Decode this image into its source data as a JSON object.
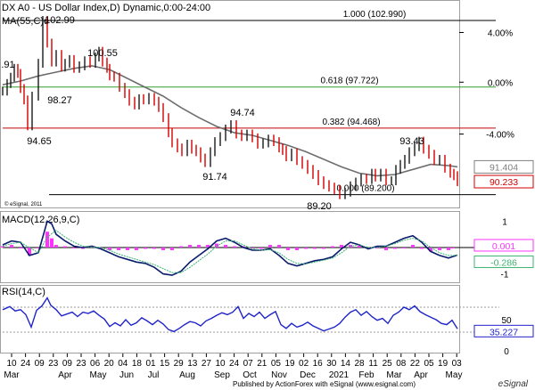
{
  "window": {
    "title": "DX A0 - US Dollar Index,D) Dynamic,0:00-24:00",
    "ma_label": "MA(55,C)e",
    "watermark": "© eSignal, 2011",
    "footer": "Published by ActionForex with eSignal (www.esignal.com)",
    "footer_logo": "eSignal"
  },
  "chart_data": [
    {
      "type": "bar",
      "subtype": "ohlc",
      "title": "DX A0 - US Dollar Index,D) Dynamic,0:00-24:00",
      "ylim": [
        88.4,
        104.4
      ],
      "grid": false,
      "y_ticks": [
        {
          "label": "4.00%"
        },
        {
          "label": "0.00%"
        },
        {
          "label": "-4.00%"
        }
      ],
      "fib_levels": [
        {
          "label": "1.000 (102.990)",
          "value": 102.99,
          "color": "#000000"
        },
        {
          "label": "0.618 (97.722)",
          "value": 97.722,
          "color": "#2ca02c"
        },
        {
          "label": "0.382 (94.468)",
          "value": 94.468,
          "color": "#c00000"
        },
        {
          "label": "0.000 (89.200)",
          "value": 89.2,
          "color": "#000000"
        }
      ],
      "price_tags": [
        {
          "label": "91.404",
          "value": 91.404,
          "color": "#7f7f7f"
        },
        {
          "label": "90.233",
          "value": 90.233,
          "color": "#d20000"
        }
      ],
      "annotations": [
        "102.99",
        "100.55",
        "98.27",
        "94.65",
        "94.74",
        "91.74",
        "93.43",
        "89.20",
        ".91"
      ],
      "series": [
        {
          "name": "DX A0",
          "kind": "price",
          "x": [
            0,
            5,
            9,
            13,
            17,
            20,
            24,
            28,
            33,
            40,
            45,
            50,
            55,
            60,
            66,
            70,
            75,
            80,
            86,
            92,
            98,
            104,
            108,
            112,
            117,
            120,
            125,
            131,
            137,
            142,
            148,
            153,
            158,
            164,
            170,
            175,
            180,
            186,
            190,
            196,
            201,
            207,
            212,
            217,
            222,
            227,
            233,
            238,
            244,
            250,
            256,
            262,
            268,
            274,
            280,
            286,
            292,
            298,
            304,
            310,
            314,
            318,
            324,
            330,
            336,
            342,
            348,
            354,
            360,
            366,
            372,
            378,
            384,
            390,
            396,
            402,
            408,
            414,
            418,
            424,
            430,
            436,
            441,
            446,
            451,
            456,
            462,
            467,
            472,
            478,
            484,
            490,
            496,
            502,
            506,
            510
          ],
          "y": [
            97.4,
            98.0,
            98.5,
            99.2,
            98.8,
            97.6,
            96.7,
            94.65,
            97.0,
            99.6,
            102.99,
            101.2,
            99.7,
            100.3,
            99.3,
            99.6,
            99.9,
            99.2,
            99.4,
            99.8,
            99.6,
            100.1,
            100.55,
            99.7,
            99.2,
            98.6,
            98.5,
            97.7,
            97.2,
            96.6,
            96.3,
            96.8,
            96.7,
            96.9,
            96.6,
            96.1,
            95.3,
            94.1,
            93.3,
            92.9,
            92.6,
            93.2,
            92.8,
            92.6,
            92.1,
            91.74,
            92.6,
            93.4,
            93.8,
            94.4,
            94.74,
            94.0,
            93.8,
            94.0,
            93.7,
            93.2,
            93.3,
            93.6,
            93.4,
            92.9,
            92.7,
            92.2,
            92.5,
            91.9,
            91.6,
            91.2,
            90.8,
            90.3,
            90.0,
            89.8,
            89.6,
            89.2,
            89.4,
            89.9,
            90.2,
            90.5,
            90.4,
            90.9,
            90.6,
            90.9,
            90.3,
            90.3,
            91.2,
            91.6,
            92.0,
            92.6,
            93.0,
            93.43,
            92.8,
            92.4,
            91.9,
            92.0,
            91.3,
            90.9,
            90.7,
            90.233
          ]
        },
        {
          "name": "MA(55,C)e",
          "kind": "ma",
          "x": [
            0,
            20,
            40,
            60,
            80,
            100,
            120,
            140,
            160,
            180,
            200,
            220,
            240,
            260,
            280,
            300,
            320,
            340,
            360,
            380,
            400,
            420,
            440,
            460,
            480,
            500,
            510
          ],
          "y": [
            97.9,
            98.2,
            98.6,
            98.9,
            99.2,
            99.4,
            99.1,
            98.4,
            97.7,
            97.0,
            96.1,
            95.3,
            94.6,
            94.1,
            93.9,
            93.5,
            93.1,
            92.6,
            92.0,
            91.4,
            90.9,
            90.7,
            90.8,
            91.2,
            91.6,
            91.5,
            91.404
          ]
        }
      ]
    },
    {
      "type": "line",
      "title": "MACD(12,26,9,C)",
      "ylim": [
        -1.25,
        1.25
      ],
      "y_ticks": [
        {
          "label": "1",
          "value": 1
        },
        {
          "label": "-1",
          "value": -1
        }
      ],
      "value_tags": [
        {
          "label": "0.001",
          "value": 0.001,
          "color": "#ff33ff"
        },
        {
          "label": "-0.286",
          "value": -0.286,
          "color": "#3cb371"
        }
      ],
      "series": [
        {
          "name": "MACD",
          "x": [
            0,
            10,
            20,
            30,
            40,
            50,
            55,
            60,
            70,
            80,
            90,
            100,
            110,
            120,
            130,
            140,
            150,
            160,
            170,
            180,
            190,
            200,
            210,
            220,
            230,
            240,
            250,
            260,
            270,
            280,
            290,
            300,
            310,
            320,
            330,
            340,
            350,
            360,
            370,
            380,
            390,
            400,
            410,
            420,
            430,
            440,
            450,
            460,
            470,
            480,
            490,
            500,
            510
          ],
          "y": [
            0.1,
            0.25,
            0.2,
            -0.3,
            -0.2,
            1.0,
            0.9,
            0.5,
            0.25,
            0.05,
            0.0,
            0.05,
            -0.05,
            -0.2,
            -0.35,
            -0.45,
            -0.55,
            -0.6,
            -0.75,
            -1.0,
            -1.05,
            -0.9,
            -0.55,
            -0.3,
            -0.05,
            0.25,
            0.35,
            0.2,
            0.0,
            -0.1,
            -0.1,
            -0.05,
            -0.3,
            -0.6,
            -0.7,
            -0.6,
            -0.5,
            -0.45,
            -0.35,
            -0.05,
            0.2,
            0.1,
            -0.05,
            0.05,
            0.05,
            0.2,
            0.35,
            0.45,
            0.2,
            -0.15,
            -0.3,
            -0.4,
            -0.286
          ]
        },
        {
          "name": "Signal",
          "x": [
            0,
            10,
            20,
            30,
            40,
            50,
            60,
            70,
            80,
            90,
            100,
            110,
            120,
            130,
            140,
            150,
            160,
            170,
            180,
            190,
            200,
            210,
            220,
            230,
            240,
            250,
            260,
            270,
            280,
            290,
            300,
            310,
            320,
            330,
            340,
            350,
            360,
            370,
            380,
            390,
            400,
            410,
            420,
            430,
            440,
            450,
            460,
            470,
            480,
            490,
            500,
            510
          ],
          "y": [
            0.05,
            0.15,
            0.2,
            0.0,
            -0.2,
            0.4,
            0.65,
            0.4,
            0.2,
            0.05,
            0.02,
            0.0,
            -0.1,
            -0.25,
            -0.35,
            -0.45,
            -0.55,
            -0.65,
            -0.8,
            -0.95,
            -0.95,
            -0.75,
            -0.5,
            -0.25,
            0.05,
            0.25,
            0.25,
            0.1,
            -0.05,
            -0.1,
            -0.08,
            -0.2,
            -0.45,
            -0.6,
            -0.62,
            -0.55,
            -0.48,
            -0.4,
            -0.2,
            0.05,
            0.1,
            0.0,
            0.0,
            0.05,
            0.15,
            0.28,
            0.35,
            0.25,
            0.0,
            -0.2,
            -0.3,
            -0.3
          ]
        },
        {
          "name": "Histogram",
          "kind": "bars",
          "color": "#ff33ff",
          "x": [
            0,
            10,
            20,
            30,
            40,
            50,
            55,
            60,
            70,
            80,
            90,
            100,
            110,
            120,
            130,
            140,
            150,
            160,
            170,
            180,
            190,
            200,
            210,
            220,
            230,
            240,
            250,
            260,
            270,
            280,
            290,
            300,
            310,
            320,
            330,
            340,
            350,
            360,
            370,
            380,
            390,
            400,
            410,
            420,
            430,
            440,
            450,
            460,
            470,
            480,
            490,
            500,
            505
          ],
          "y": [
            0.05,
            0.1,
            0.0,
            -0.3,
            0.0,
            0.6,
            0.35,
            0.1,
            0.05,
            0.0,
            -0.05,
            0.05,
            -0.05,
            -0.1,
            -0.1,
            -0.1,
            -0.1,
            -0.05,
            -0.05,
            -0.1,
            -0.1,
            0.05,
            0.1,
            0.1,
            0.1,
            0.15,
            0.1,
            0.05,
            0.05,
            0.0,
            -0.05,
            0.1,
            0.1,
            -0.1,
            -0.1,
            -0.05,
            -0.05,
            -0.05,
            0.05,
            0.1,
            0.1,
            0.1,
            -0.05,
            0.0,
            -0.1,
            -0.05,
            0.0,
            0.1,
            -0.05,
            -0.15,
            -0.1,
            -0.1,
            0.001
          ]
        }
      ]
    },
    {
      "type": "line",
      "title": "RSI(14,C)",
      "ylim": [
        0,
        100
      ],
      "y_ticks": [
        {
          "label": "50",
          "value": 50
        },
        {
          "label": "0",
          "value": 0
        }
      ],
      "value_tags": [
        {
          "label": "35.227",
          "value": 35.227,
          "color": "#2222cc"
        }
      ],
      "series": [
        {
          "name": "RSI",
          "x": [
            0,
            8,
            14,
            20,
            26,
            32,
            38,
            44,
            50,
            54,
            60,
            66,
            72,
            78,
            84,
            90,
            96,
            102,
            108,
            114,
            120,
            126,
            132,
            138,
            144,
            150,
            156,
            162,
            168,
            174,
            180,
            186,
            192,
            198,
            204,
            210,
            216,
            222,
            228,
            234,
            240,
            246,
            252,
            258,
            264,
            270,
            276,
            282,
            288,
            294,
            300,
            306,
            312,
            318,
            324,
            330,
            336,
            342,
            348,
            354,
            360,
            366,
            372,
            378,
            384,
            390,
            396,
            402,
            408,
            414,
            420,
            426,
            432,
            438,
            444,
            450,
            456,
            462,
            468,
            474,
            480,
            486,
            492,
            498,
            504,
            508,
            510
          ],
          "y": [
            66,
            71,
            64,
            66,
            58,
            38,
            65,
            72,
            85,
            73,
            66,
            56,
            59,
            62,
            55,
            62,
            60,
            64,
            57,
            51,
            39,
            45,
            40,
            50,
            41,
            45,
            53,
            48,
            42,
            49,
            43,
            34,
            31,
            36,
            42,
            47,
            45,
            40,
            48,
            52,
            57,
            61,
            58,
            62,
            71,
            52,
            60,
            55,
            62,
            52,
            58,
            63,
            42,
            36,
            44,
            38,
            41,
            46,
            40,
            36,
            32,
            35,
            38,
            44,
            54,
            62,
            66,
            57,
            63,
            55,
            49,
            52,
            44,
            57,
            62,
            70,
            66,
            72,
            63,
            58,
            54,
            50,
            44,
            42,
            49,
            40,
            35.227
          ]
        }
      ]
    }
  ],
  "x_axis": {
    "day_labels": [
      "10",
      "24",
      "09",
      "23",
      "09",
      "23",
      "06",
      "20",
      "04",
      "18",
      "01",
      "15",
      "29",
      "13",
      "27",
      "10",
      "24",
      "07",
      "21",
      "05",
      "19",
      "02",
      "16",
      "30",
      "14",
      "28",
      "11",
      "25",
      "08",
      "22",
      "05",
      "19",
      "03"
    ],
    "month_labels": [
      "Mar",
      "Apr",
      "May",
      "Jun",
      "Jul",
      "Aug",
      "Sep",
      "Oct",
      "Nov",
      "Dec",
      "2021",
      "Feb",
      "Mar",
      "Apr",
      "May"
    ]
  }
}
